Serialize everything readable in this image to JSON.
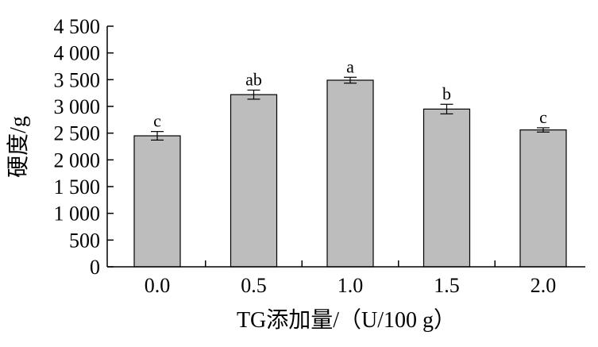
{
  "chart_data": {
    "type": "bar",
    "title": "",
    "xlabel": "TG添加量/（U/100 g）",
    "ylabel": "硬度/g",
    "categories": [
      "0.0",
      "0.5",
      "1.0",
      "1.5",
      "2.0"
    ],
    "series": [
      {
        "values": [
          2450,
          3220,
          3490,
          2950,
          2560
        ],
        "errors": [
          80,
          85,
          55,
          90,
          40
        ],
        "significance": [
          "c",
          "ab",
          "a",
          "b",
          "c"
        ]
      }
    ],
    "ylim": [
      0,
      4500
    ],
    "yticks": [
      0,
      500,
      1000,
      1500,
      2000,
      2500,
      3000,
      3500,
      4000,
      4500
    ],
    "ytick_labels": [
      "0",
      "500",
      "1 000",
      "1 500",
      "2 000",
      "2 500",
      "3 000",
      "3 500",
      "4 000",
      "4 500"
    ],
    "bar_color": "#bdbdbd",
    "edge_color": "#000000",
    "grid": false,
    "legend": "none"
  }
}
